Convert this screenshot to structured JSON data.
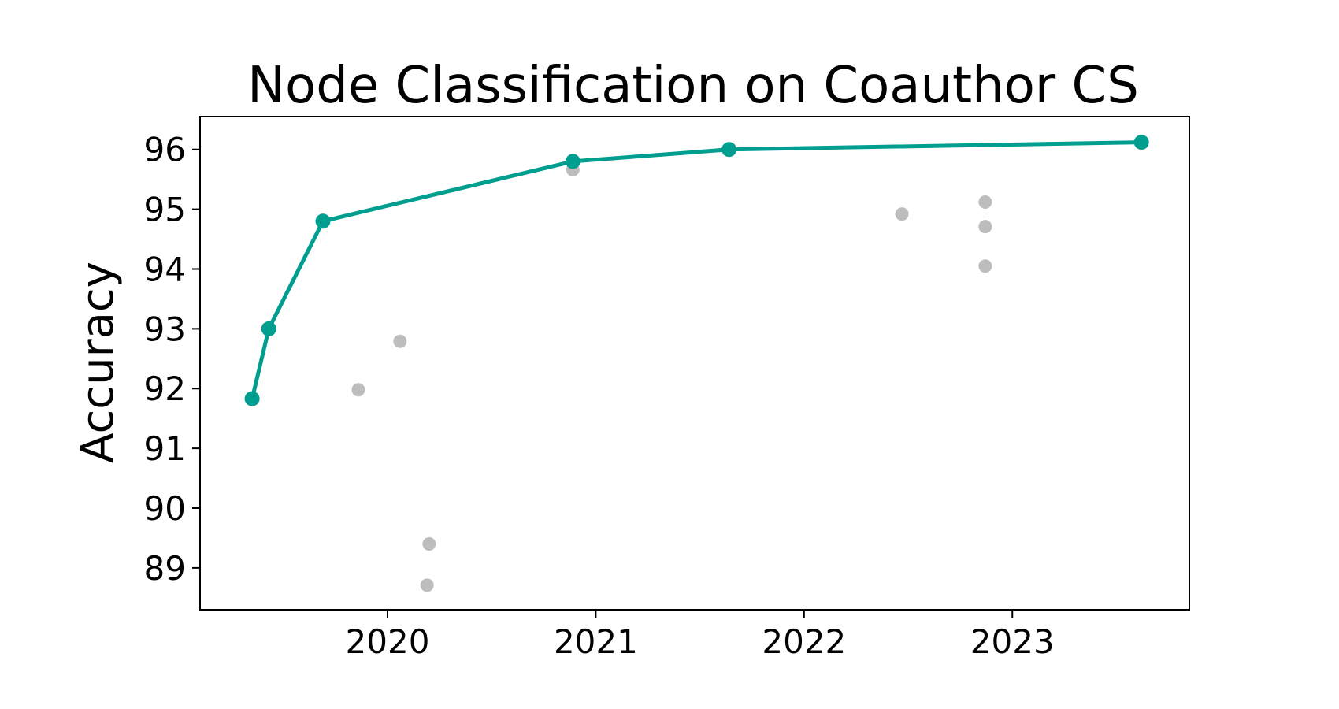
{
  "chart_data": {
    "type": "line",
    "title": "Node Classification on Coauthor CS",
    "xlabel": "",
    "ylabel": "Accuracy",
    "xlim": [
      2019.1,
      2023.85
    ],
    "ylim": [
      88.3,
      96.55
    ],
    "xticks": [
      2020,
      2021,
      2022,
      2023
    ],
    "xtick_labels": [
      "2020",
      "2021",
      "2022",
      "2023"
    ],
    "yticks": [
      89,
      90,
      91,
      92,
      93,
      94,
      95,
      96
    ],
    "ytick_labels": [
      "89",
      "90",
      "91",
      "92",
      "93",
      "94",
      "95",
      "96"
    ],
    "grid": false,
    "series": [
      {
        "kind": "line",
        "color": "#009e8f",
        "points": [
          {
            "x": 2019.35,
            "y": 91.83
          },
          {
            "x": 2019.43,
            "y": 93.0
          },
          {
            "x": 2019.69,
            "y": 94.8
          },
          {
            "x": 2020.89,
            "y": 95.8
          },
          {
            "x": 2021.64,
            "y": 96.0
          },
          {
            "x": 2023.62,
            "y": 96.12
          }
        ]
      },
      {
        "kind": "scatter",
        "color": "#bdbdbd",
        "points": [
          {
            "x": 2019.86,
            "y": 91.98
          },
          {
            "x": 2020.06,
            "y": 92.79
          },
          {
            "x": 2020.2,
            "y": 89.4
          },
          {
            "x": 2020.19,
            "y": 88.71
          },
          {
            "x": 2020.89,
            "y": 95.66
          },
          {
            "x": 2022.47,
            "y": 94.92
          },
          {
            "x": 2022.87,
            "y": 95.12
          },
          {
            "x": 2022.87,
            "y": 94.71
          },
          {
            "x": 2022.87,
            "y": 94.05
          }
        ]
      }
    ]
  }
}
